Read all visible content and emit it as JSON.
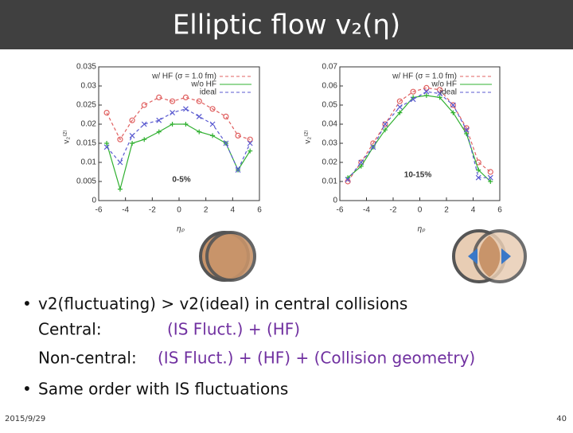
{
  "slide_title": "Elliptic flow  v₂(η)",
  "chart_data": [
    {
      "type": "line",
      "ylabel": "v₂⁽²⁾",
      "xlabel": "ηₚ",
      "annotation": "0-5%",
      "x": [
        -5.4,
        -4.4,
        -3.5,
        -2.6,
        -1.5,
        -0.5,
        0.5,
        1.5,
        2.5,
        3.5,
        4.4,
        5.3
      ],
      "xlim": [
        -6,
        6
      ],
      "xticks": [
        -6,
        -4,
        -2,
        0,
        2,
        4,
        6
      ],
      "ylim": [
        0,
        0.035
      ],
      "yticks": [
        0,
        0.005,
        0.01,
        0.015,
        0.02,
        0.025,
        0.03,
        0.035
      ],
      "legend": "upper right",
      "series": [
        {
          "name": "w/ HF (σ = 1.0 fm)",
          "color": "#e06060",
          "linestyle": "dashed",
          "marker": "circle",
          "values": [
            0.023,
            0.016,
            0.021,
            0.025,
            0.027,
            0.026,
            0.027,
            0.026,
            0.024,
            0.022,
            0.017,
            0.016
          ]
        },
        {
          "name": "w/o HF",
          "color": "#30b030",
          "linestyle": "solid",
          "marker": "plus",
          "values": [
            0.015,
            0.003,
            0.015,
            0.016,
            0.018,
            0.02,
            0.02,
            0.018,
            0.017,
            0.015,
            0.008,
            0.013
          ]
        },
        {
          "name": "ideal",
          "color": "#5a5ad0",
          "linestyle": "dashed",
          "marker": "x",
          "values": [
            0.014,
            0.01,
            0.017,
            0.02,
            0.021,
            0.023,
            0.024,
            0.022,
            0.02,
            0.015,
            0.008,
            0.015
          ]
        }
      ]
    },
    {
      "type": "line",
      "ylabel": "v₂⁽²⁾",
      "xlabel": "ηₚ",
      "annotation": "10-15%",
      "x": [
        -5.4,
        -4.4,
        -3.5,
        -2.6,
        -1.5,
        -0.5,
        0.5,
        1.5,
        2.5,
        3.5,
        4.4,
        5.3
      ],
      "xlim": [
        -6,
        6
      ],
      "xticks": [
        -6,
        -4,
        -2,
        0,
        2,
        4,
        6
      ],
      "ylim": [
        0,
        0.07
      ],
      "yticks": [
        0,
        0.01,
        0.02,
        0.03,
        0.04,
        0.05,
        0.06,
        0.07
      ],
      "legend": "upper right",
      "series": [
        {
          "name": "w/ HF (σ = 1.0 fm)",
          "color": "#e06060",
          "linestyle": "dashed",
          "marker": "circle",
          "values": [
            0.01,
            0.02,
            0.03,
            0.04,
            0.052,
            0.057,
            0.059,
            0.058,
            0.05,
            0.038,
            0.02,
            0.015
          ]
        },
        {
          "name": "w/o HF",
          "color": "#30b030",
          "linestyle": "solid",
          "marker": "plus",
          "values": [
            0.012,
            0.018,
            0.028,
            0.037,
            0.046,
            0.054,
            0.055,
            0.054,
            0.046,
            0.035,
            0.016,
            0.01
          ]
        },
        {
          "name": "ideal",
          "color": "#5a5ad0",
          "linestyle": "dashed",
          "marker": "x",
          "values": [
            0.011,
            0.02,
            0.028,
            0.04,
            0.049,
            0.053,
            0.057,
            0.056,
            0.05,
            0.037,
            0.012,
            0.012
          ]
        }
      ]
    }
  ],
  "bullets": {
    "b1": "v2(fluctuating) > v2(ideal) in central collisions",
    "central_label": "Central:",
    "central_text": "(IS Fluct.) + (HF)",
    "noncentral_label": "Non-central:",
    "noncentral_text": "(IS Fluct.) + (HF) + (Collision geometry)",
    "b2": "Same order with IS fluctuations"
  },
  "footer": {
    "date": "2015/9/29",
    "page": "40"
  }
}
